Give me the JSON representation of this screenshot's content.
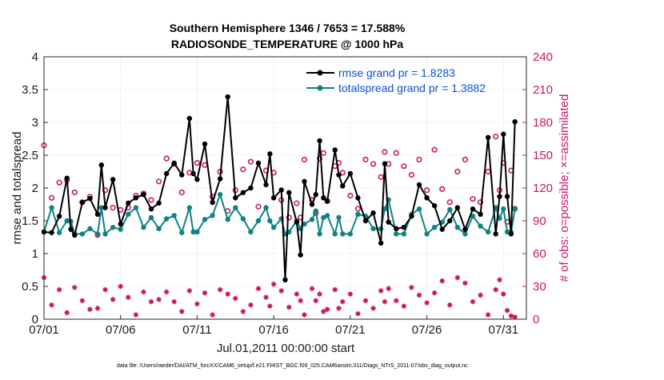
{
  "chart_data": {
    "type": "line",
    "title_line1": "Southern Hemisphere 1346 / 7653 = 17.588%",
    "title_line2": "RADIOSONDE_TEMPERATURE @ 1000 hPa",
    "xlabel": "Jul.01,2011 00:00:00 start",
    "ylabel": "rmse and totalspread",
    "ylabel_right": "# of obs: o=possible; ×=assimilated",
    "footnote": "data file: /Users/raeder/DAI/ATM_forcXX/CAM6_setup/f.e21.FHIST_BGC.f09_025.CAM6assim.011/Diags_NTrS_2011-07/obs_diag_output.nc",
    "xlim": [
      0,
      31.5
    ],
    "ylim": [
      0,
      4
    ],
    "ylim_right": [
      0,
      240
    ],
    "x_ticks": [
      0,
      5,
      10,
      15,
      20,
      25,
      30
    ],
    "x_tick_labels": [
      "07/01",
      "07/06",
      "07/11",
      "07/16",
      "07/21",
      "07/26",
      "07/31"
    ],
    "y_ticks": [
      0,
      0.5,
      1,
      1.5,
      2,
      2.5,
      3,
      3.5,
      4
    ],
    "y_tick_labels": [
      "0",
      "0.5",
      "1",
      "1.5",
      "2",
      "2.5",
      "3",
      "3.5",
      "4"
    ],
    "y_right_ticks": [
      0,
      30,
      60,
      90,
      120,
      150,
      180,
      210,
      240
    ],
    "y_right_tick_labels": [
      "0",
      "30",
      "60",
      "90",
      "120",
      "150",
      "180",
      "210",
      "240"
    ],
    "legend": [
      {
        "label": "rmse grand pr = 1.8283",
        "color": "#000000"
      },
      {
        "label": "totalspread grand pr = 1.3882",
        "color": "#0f8282"
      }
    ],
    "series": [
      {
        "name": "rmse",
        "color": "#000000",
        "points": [
          [
            0,
            1.33
          ],
          [
            0.5,
            1.32
          ],
          [
            1,
            1.57
          ],
          [
            1.5,
            2.15
          ],
          [
            1.75,
            1.37
          ],
          [
            2,
            1.28
          ],
          [
            2.5,
            1.78
          ],
          [
            3,
            1.84
          ],
          [
            3.5,
            1.6
          ],
          [
            3.75,
            2.35
          ],
          [
            4,
            1.7
          ],
          [
            4.5,
            2.13
          ],
          [
            5,
            1.45
          ],
          [
            5.5,
            1.77
          ],
          [
            6,
            1.85
          ],
          [
            6.5,
            1.9
          ],
          [
            7,
            1.68
          ],
          [
            7.5,
            1.77
          ],
          [
            8,
            2.22
          ],
          [
            8.5,
            2.38
          ],
          [
            9,
            2.2
          ],
          [
            9.5,
            3.06
          ],
          [
            9.75,
            2.22
          ],
          [
            10,
            2.13
          ],
          [
            10.5,
            2.67
          ],
          [
            11,
            1.78
          ],
          [
            11.5,
            2.14
          ],
          [
            12,
            3.39
          ],
          [
            12.5,
            1.85
          ],
          [
            13,
            1.93
          ],
          [
            13.5,
            2.0
          ],
          [
            14,
            2.38
          ],
          [
            14.5,
            2.05
          ],
          [
            14.75,
            2.52
          ],
          [
            15,
            1.85
          ],
          [
            15.5,
            1.97
          ],
          [
            15.75,
            0.6
          ],
          [
            16,
            1.93
          ],
          [
            16.5,
            1.48
          ],
          [
            16.75,
            0.98
          ],
          [
            17,
            2.1
          ],
          [
            17.5,
            1.75
          ],
          [
            17.75,
            1.9
          ],
          [
            18,
            2.72
          ],
          [
            18.25,
            1.85
          ],
          [
            18.5,
            1.8
          ],
          [
            19,
            2.58
          ],
          [
            19.25,
            2.2
          ],
          [
            19.5,
            2.03
          ],
          [
            20,
            2.22
          ],
          [
            20.5,
            1.85
          ],
          [
            21,
            1.5
          ],
          [
            21.5,
            1.62
          ],
          [
            22,
            1.16
          ],
          [
            22.25,
            2.37
          ],
          [
            22.5,
            1.48
          ],
          [
            23,
            1.38
          ],
          [
            23.5,
            1.4
          ],
          [
            24,
            1.57
          ],
          [
            24.5,
            2.05
          ],
          [
            25,
            1.85
          ],
          [
            25.5,
            1.73
          ],
          [
            26,
            1.37
          ],
          [
            26.5,
            1.5
          ],
          [
            27,
            1.7
          ],
          [
            27.5,
            1.37
          ],
          [
            28,
            1.68
          ],
          [
            28.5,
            1.6
          ],
          [
            29,
            2.77
          ],
          [
            29.5,
            1.3
          ],
          [
            29.75,
            1.87
          ],
          [
            30,
            2.82
          ],
          [
            30.25,
            1.87
          ],
          [
            30.5,
            1.3
          ],
          [
            30.75,
            3.01
          ]
        ]
      },
      {
        "name": "totalspread",
        "color": "#0f8282",
        "points": [
          [
            0,
            1.33
          ],
          [
            0.5,
            1.7
          ],
          [
            1,
            1.32
          ],
          [
            1.5,
            1.5
          ],
          [
            1.75,
            1.49
          ],
          [
            2,
            1.3
          ],
          [
            2.5,
            1.3
          ],
          [
            3,
            1.38
          ],
          [
            3.5,
            1.3
          ],
          [
            3.75,
            1.7
          ],
          [
            4,
            1.3
          ],
          [
            4.5,
            1.4
          ],
          [
            5,
            1.37
          ],
          [
            5.5,
            1.6
          ],
          [
            6,
            1.7
          ],
          [
            6.5,
            1.4
          ],
          [
            7,
            1.55
          ],
          [
            7.5,
            1.38
          ],
          [
            8,
            1.53
          ],
          [
            8.5,
            1.58
          ],
          [
            9,
            1.32
          ],
          [
            9.5,
            1.7
          ],
          [
            9.75,
            1.33
          ],
          [
            10,
            1.33
          ],
          [
            10.5,
            1.52
          ],
          [
            11,
            1.58
          ],
          [
            11.5,
            1.9
          ],
          [
            12,
            1.52
          ],
          [
            12.5,
            1.7
          ],
          [
            13,
            1.53
          ],
          [
            13.5,
            1.33
          ],
          [
            14,
            1.5
          ],
          [
            14.5,
            1.7
          ],
          [
            14.75,
            1.5
          ],
          [
            15,
            1.4
          ],
          [
            15.5,
            1.53
          ],
          [
            15.75,
            1.3
          ],
          [
            16,
            1.33
          ],
          [
            16.5,
            1.5
          ],
          [
            16.75,
            1.38
          ],
          [
            17,
            1.45
          ],
          [
            17.5,
            1.52
          ],
          [
            17.75,
            1.65
          ],
          [
            18,
            1.3
          ],
          [
            18.25,
            1.55
          ],
          [
            18.5,
            1.58
          ],
          [
            19,
            1.3
          ],
          [
            19.25,
            1.55
          ],
          [
            19.5,
            1.3
          ],
          [
            20,
            1.3
          ],
          [
            20.5,
            1.6
          ],
          [
            21,
            1.57
          ],
          [
            21.5,
            1.38
          ],
          [
            22,
            1.38
          ],
          [
            22.25,
            1.68
          ],
          [
            22.5,
            1.82
          ],
          [
            23,
            1.3
          ],
          [
            23.5,
            1.3
          ],
          [
            24,
            1.6
          ],
          [
            24.5,
            1.68
          ],
          [
            25,
            1.3
          ],
          [
            25.5,
            1.4
          ],
          [
            26,
            1.48
          ],
          [
            26.5,
            1.67
          ],
          [
            27,
            1.4
          ],
          [
            27.5,
            1.3
          ],
          [
            28,
            1.57
          ],
          [
            28.5,
            1.42
          ],
          [
            29,
            1.33
          ],
          [
            29.5,
            1.7
          ],
          [
            29.75,
            1.54
          ],
          [
            30,
            1.68
          ],
          [
            30.25,
            1.33
          ],
          [
            30.5,
            1.33
          ],
          [
            30.75,
            1.68
          ]
        ]
      }
    ],
    "obs_possible": {
      "name": "possible (o)",
      "color": "#cc1466",
      "points": [
        [
          0,
          159
        ],
        [
          0.5,
          111
        ],
        [
          1,
          125
        ],
        [
          1.5,
          127
        ],
        [
          2,
          116
        ],
        [
          2.5,
          107
        ],
        [
          3,
          112
        ],
        [
          3.5,
          77
        ],
        [
          4,
          118
        ],
        [
          4.5,
          102
        ],
        [
          5,
          100
        ],
        [
          5.5,
          102
        ],
        [
          6,
          113
        ],
        [
          6.5,
          115
        ],
        [
          7,
          109
        ],
        [
          7.5,
          126
        ],
        [
          8,
          147
        ],
        [
          8.5,
          142
        ],
        [
          9,
          116
        ],
        [
          9.5,
          134
        ],
        [
          10,
          143
        ],
        [
          10.5,
          141
        ],
        [
          11,
          112
        ],
        [
          11.5,
          135
        ],
        [
          12,
          99
        ],
        [
          12.5,
          118
        ],
        [
          13,
          137
        ],
        [
          13.5,
          144
        ],
        [
          14,
          103
        ],
        [
          14.5,
          136
        ],
        [
          15,
          134
        ],
        [
          15.5,
          109
        ],
        [
          16,
          93
        ],
        [
          16.5,
          106
        ],
        [
          16.75,
          93
        ],
        [
          17,
          146
        ],
        [
          17.5,
          109
        ],
        [
          17.75,
          97
        ],
        [
          18,
          147
        ],
        [
          18.25,
          152
        ],
        [
          18.5,
          108
        ],
        [
          19,
          140
        ],
        [
          19.25,
          143
        ],
        [
          19.5,
          134
        ],
        [
          20,
          113
        ],
        [
          20.5,
          101
        ],
        [
          21,
          146
        ],
        [
          21.5,
          142
        ],
        [
          22,
          130
        ],
        [
          22.25,
          153
        ],
        [
          22.5,
          142
        ],
        [
          23,
          152
        ],
        [
          23.5,
          140
        ],
        [
          24,
          132
        ],
        [
          24.5,
          146
        ],
        [
          25,
          118
        ],
        [
          25.5,
          155
        ],
        [
          26,
          119
        ],
        [
          26.5,
          107
        ],
        [
          27,
          135
        ],
        [
          27.5,
          146
        ],
        [
          28,
          110
        ],
        [
          28.5,
          107
        ],
        [
          29,
          135
        ],
        [
          29.5,
          167
        ],
        [
          29.75,
          118
        ],
        [
          30,
          143
        ],
        [
          30.25,
          89
        ],
        [
          30.5,
          136
        ],
        [
          30.75,
          101
        ]
      ]
    },
    "obs_assimilated": {
      "name": "assimilated (×)",
      "color": "#cc1466",
      "points": [
        [
          0,
          38
        ],
        [
          0.5,
          13
        ],
        [
          1,
          27
        ],
        [
          1.5,
          6
        ],
        [
          2,
          29
        ],
        [
          2.5,
          17
        ],
        [
          3,
          9
        ],
        [
          3.5,
          10
        ],
        [
          4,
          27
        ],
        [
          4.5,
          18
        ],
        [
          5,
          30
        ],
        [
          5.5,
          20
        ],
        [
          6,
          4
        ],
        [
          6.5,
          25
        ],
        [
          7,
          16
        ],
        [
          7.5,
          18
        ],
        [
          8,
          25
        ],
        [
          8.5,
          16
        ],
        [
          9,
          7
        ],
        [
          9.5,
          26
        ],
        [
          10,
          14
        ],
        [
          10.5,
          24
        ],
        [
          11,
          4
        ],
        [
          11.5,
          27
        ],
        [
          12,
          23
        ],
        [
          12.5,
          19
        ],
        [
          13,
          7
        ],
        [
          13.5,
          13
        ],
        [
          14,
          28
        ],
        [
          14.5,
          20
        ],
        [
          14.75,
          12
        ],
        [
          15,
          32
        ],
        [
          15.5,
          26
        ],
        [
          16,
          11
        ],
        [
          16.5,
          23
        ],
        [
          16.75,
          17
        ],
        [
          17,
          4
        ],
        [
          17.5,
          28
        ],
        [
          17.75,
          17
        ],
        [
          18,
          23
        ],
        [
          18.25,
          7
        ],
        [
          18.5,
          9
        ],
        [
          19,
          27
        ],
        [
          19.25,
          10
        ],
        [
          19.5,
          16
        ],
        [
          20,
          23
        ],
        [
          20.5,
          5
        ],
        [
          21,
          17
        ],
        [
          21.5,
          10
        ],
        [
          22,
          26
        ],
        [
          22.25,
          16
        ],
        [
          22.5,
          28
        ],
        [
          23,
          17
        ],
        [
          23.5,
          12
        ],
        [
          24,
          29
        ],
        [
          24.5,
          22
        ],
        [
          25,
          15
        ],
        [
          25.5,
          24
        ],
        [
          26,
          35
        ],
        [
          26.5,
          13
        ],
        [
          27,
          38
        ],
        [
          27.5,
          33
        ],
        [
          28,
          16
        ],
        [
          28.5,
          22
        ],
        [
          29,
          4
        ],
        [
          29.5,
          27
        ],
        [
          29.75,
          36
        ],
        [
          30,
          23
        ],
        [
          30.25,
          8
        ],
        [
          30.5,
          3
        ],
        [
          30.75,
          2
        ]
      ]
    }
  }
}
